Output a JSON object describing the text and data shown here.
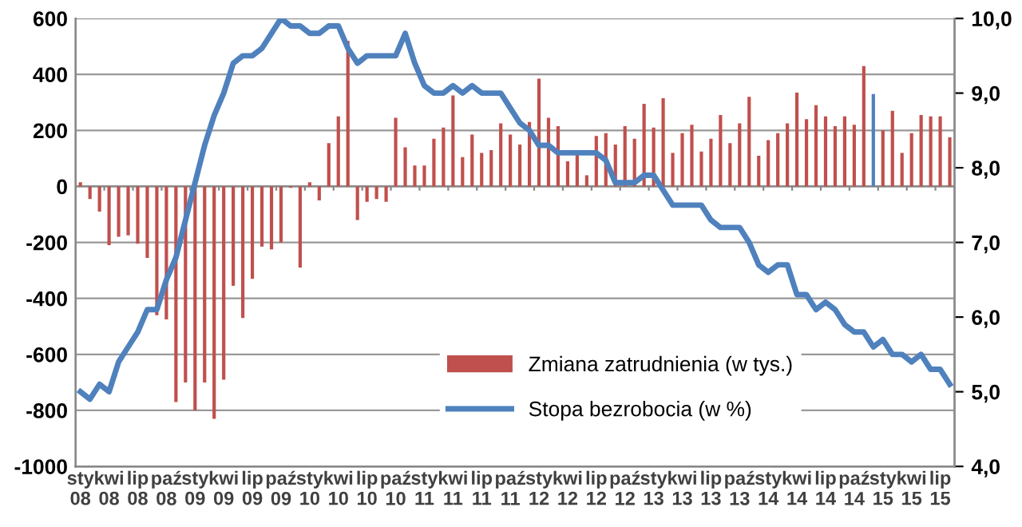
{
  "chart_data": {
    "type": "bar",
    "categories": [
      "sty\n08",
      null,
      null,
      "kwi\n08",
      null,
      null,
      "lip\n08",
      null,
      null,
      "paź\n08",
      null,
      null,
      "sty\n09",
      null,
      null,
      "kwi\n09",
      null,
      null,
      "lip\n09",
      null,
      null,
      "paź\n09",
      null,
      null,
      "sty\n10",
      null,
      null,
      "kwi\n10",
      null,
      null,
      "lip\n10",
      null,
      null,
      "paź\n10",
      null,
      null,
      "sty\n11",
      null,
      null,
      "kwi\n11",
      null,
      null,
      "lip\n11",
      null,
      null,
      "paź\n11",
      null,
      null,
      "sty\n12",
      null,
      null,
      "kwi\n12",
      null,
      null,
      "lip\n12",
      null,
      null,
      "paź\n12",
      null,
      null,
      "sty\n13",
      null,
      null,
      "kwi\n13",
      null,
      null,
      "lip\n13",
      null,
      null,
      "paź\n13",
      null,
      null,
      "sty\n14",
      null,
      null,
      "kwi\n14",
      null,
      null,
      "lip\n14",
      null,
      null,
      "paź\n14",
      null,
      null,
      "sty\n15",
      null,
      null,
      "kwi\n15",
      null,
      null,
      "lip\n15",
      null
    ],
    "series": [
      {
        "name": "Zmiana zatrudnienia (w tys.)",
        "color": "#c0504d",
        "colors": [
          "#c0504d",
          "#c0504d",
          "#c0504d",
          "#c0504d",
          "#c0504d",
          "#c0504d",
          "#c0504d",
          "#c0504d",
          "#c0504d",
          "#c0504d",
          "#c0504d",
          "#c0504d",
          "#c0504d",
          "#c0504d",
          "#c0504d",
          "#c0504d",
          "#c0504d",
          "#c0504d",
          "#c0504d",
          "#c0504d",
          "#c0504d",
          "#c0504d",
          "#c0504d",
          "#c0504d",
          "#c0504d",
          "#c0504d",
          "#c0504d",
          "#c0504d",
          "#c0504d",
          "#c0504d",
          "#c0504d",
          "#c0504d",
          "#c0504d",
          "#c0504d",
          "#c0504d",
          "#c0504d",
          "#c0504d",
          "#c0504d",
          "#c0504d",
          "#c0504d",
          "#c0504d",
          "#c0504d",
          "#c0504d",
          "#c0504d",
          "#c0504d",
          "#c0504d",
          "#c0504d",
          "#c0504d",
          "#c0504d",
          "#c0504d",
          "#c0504d",
          "#c0504d",
          "#c0504d",
          "#c0504d",
          "#c0504d",
          "#c0504d",
          "#c0504d",
          "#c0504d",
          "#c0504d",
          "#c0504d",
          "#c0504d",
          "#c0504d",
          "#c0504d",
          "#c0504d",
          "#c0504d",
          "#c0504d",
          "#c0504d",
          "#c0504d",
          "#c0504d",
          "#c0504d",
          "#c0504d",
          "#c0504d",
          "#c0504d",
          "#c0504d",
          "#c0504d",
          "#c0504d",
          "#c0504d",
          "#c0504d",
          "#c0504d",
          "#c0504d",
          "#c0504d",
          "#c0504d",
          "#c0504d",
          "#4f81bd",
          "#c0504d",
          "#c0504d",
          "#c0504d",
          "#c0504d",
          "#c0504d",
          "#c0504d",
          "#c0504d",
          "#c0504d"
        ],
        "values": [
          15,
          -45,
          -90,
          -210,
          -180,
          -175,
          -205,
          -255,
          -460,
          -475,
          -770,
          -700,
          -800,
          -700,
          -830,
          -690,
          -355,
          -470,
          -330,
          -215,
          -225,
          -200,
          -5,
          -290,
          15,
          -50,
          155,
          250,
          520,
          -120,
          -55,
          -45,
          -55,
          245,
          140,
          75,
          75,
          170,
          210,
          325,
          105,
          185,
          120,
          130,
          225,
          185,
          150,
          230,
          385,
          245,
          215,
          90,
          115,
          40,
          180,
          190,
          150,
          215,
          170,
          295,
          210,
          315,
          120,
          190,
          220,
          125,
          170,
          255,
          155,
          225,
          320,
          110,
          165,
          190,
          225,
          335,
          240,
          290,
          250,
          215,
          250,
          220,
          430,
          330,
          200,
          270,
          120,
          190,
          255,
          250,
          250,
          175
        ]
      },
      {
        "name": "Stopa bezrobocia (w %)",
        "type": "line",
        "axis": "y2",
        "color": "#4f81bd",
        "values": [
          5.0,
          4.9,
          5.1,
          5.0,
          5.4,
          5.6,
          5.8,
          6.1,
          6.1,
          6.5,
          6.8,
          7.3,
          7.8,
          8.3,
          8.7,
          9.0,
          9.4,
          9.5,
          9.5,
          9.6,
          9.8,
          10.0,
          9.9,
          9.9,
          9.8,
          9.8,
          9.9,
          9.9,
          9.6,
          9.4,
          9.5,
          9.5,
          9.5,
          9.5,
          9.8,
          9.4,
          9.1,
          9.0,
          9.0,
          9.1,
          9.0,
          9.1,
          9.0,
          9.0,
          9.0,
          8.8,
          8.6,
          8.5,
          8.3,
          8.3,
          8.2,
          8.2,
          8.2,
          8.2,
          8.2,
          8.1,
          7.8,
          7.8,
          7.8,
          7.9,
          7.9,
          7.7,
          7.5,
          7.5,
          7.5,
          7.5,
          7.3,
          7.2,
          7.2,
          7.2,
          7.0,
          6.7,
          6.6,
          6.7,
          6.7,
          6.3,
          6.3,
          6.1,
          6.2,
          6.1,
          5.9,
          5.8,
          5.8,
          5.6,
          5.7,
          5.5,
          5.5,
          5.4,
          5.5,
          5.3,
          5.3,
          5.1
        ]
      }
    ],
    "ylim": [
      -1000,
      600
    ],
    "yticks": [
      -1000,
      -800,
      -600,
      -400,
      -200,
      0,
      200,
      400,
      600
    ],
    "y2lim": [
      4,
      10
    ],
    "y2ticks": [
      {
        "value": 4,
        "label": "4,0"
      },
      {
        "value": 5,
        "label": "5,0"
      },
      {
        "value": 6,
        "label": "6,0"
      },
      {
        "value": 7,
        "label": "7,0"
      },
      {
        "value": 8,
        "label": "8,0"
      },
      {
        "value": 9,
        "label": "9,0"
      },
      {
        "value": 10,
        "label": "10,0"
      }
    ],
    "grid": "y",
    "legend": "bottom"
  }
}
